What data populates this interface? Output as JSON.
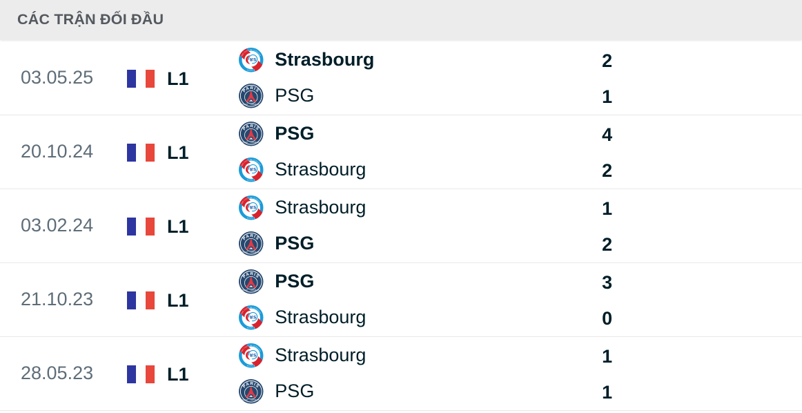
{
  "header": {
    "title": "CÁC TRẬN ĐỐI ĐẦU"
  },
  "league": {
    "code": "L1",
    "flag": "france"
  },
  "matches": [
    {
      "date": "03.05.25",
      "league": "L1",
      "home": {
        "name": "Strasbourg",
        "logo": "strasbourg",
        "score": "2",
        "winner": true
      },
      "away": {
        "name": "PSG",
        "logo": "psg",
        "score": "1",
        "winner": false
      }
    },
    {
      "date": "20.10.24",
      "league": "L1",
      "home": {
        "name": "PSG",
        "logo": "psg",
        "score": "4",
        "winner": true
      },
      "away": {
        "name": "Strasbourg",
        "logo": "strasbourg",
        "score": "2",
        "winner": false
      }
    },
    {
      "date": "03.02.24",
      "league": "L1",
      "home": {
        "name": "Strasbourg",
        "logo": "strasbourg",
        "score": "1",
        "winner": false
      },
      "away": {
        "name": "PSG",
        "logo": "psg",
        "score": "2",
        "winner": true
      }
    },
    {
      "date": "21.10.23",
      "league": "L1",
      "home": {
        "name": "PSG",
        "logo": "psg",
        "score": "3",
        "winner": true
      },
      "away": {
        "name": "Strasbourg",
        "logo": "strasbourg",
        "score": "0",
        "winner": false
      }
    },
    {
      "date": "28.05.23",
      "league": "L1",
      "home": {
        "name": "Strasbourg",
        "logo": "strasbourg",
        "score": "1",
        "winner": false
      },
      "away": {
        "name": "PSG",
        "logo": "psg",
        "score": "1",
        "winner": false
      }
    }
  ],
  "colors": {
    "header_bg": "#ececec",
    "header_text": "#54595f",
    "date_text": "#5e6d78",
    "dark_text": "#001e28",
    "divider": "#e9e9e9",
    "flag_blue": "#2d35a0",
    "flag_red": "#e8473c",
    "strasbourg_blue": "#1b9bd8",
    "strasbourg_red": "#d8232e",
    "psg_navy": "#1f4370",
    "psg_red": "#da3340"
  }
}
